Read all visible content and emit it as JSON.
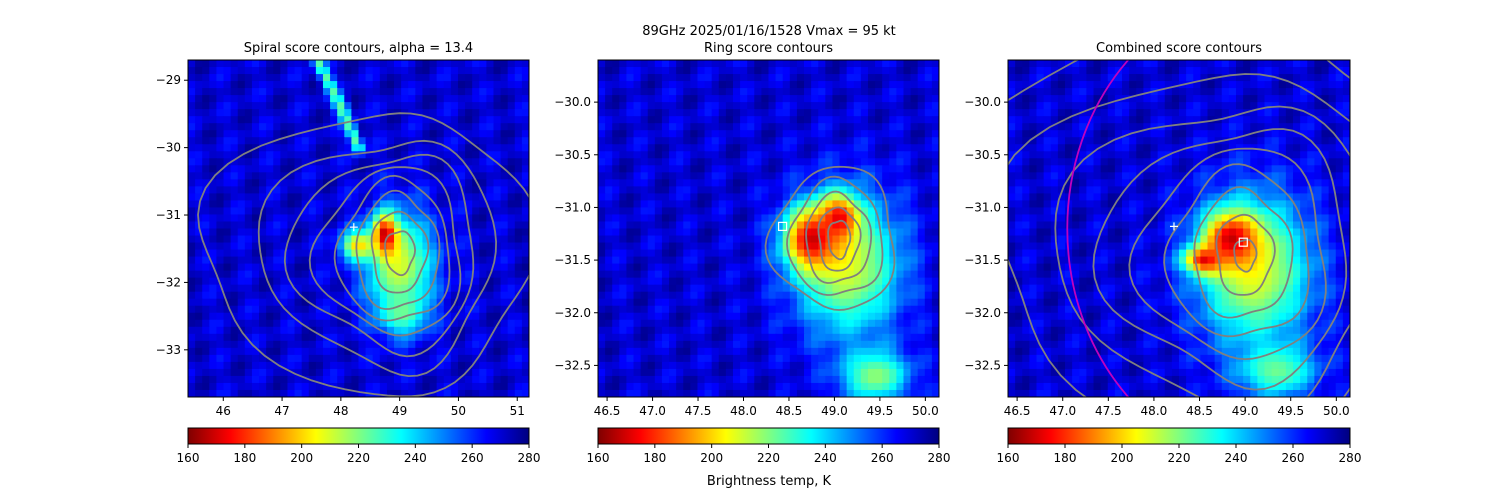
{
  "suptitle": "89GHz  2025/01/16/1528    Vmax = 95 kt",
  "colorbar_label": "Brightness temp, K",
  "colormap": [
    "#7f0000",
    "#ff0000",
    "#ff8000",
    "#ffff00",
    "#80ff80",
    "#00ffff",
    "#0080ff",
    "#0000ff",
    "#00007f"
  ],
  "colors": {
    "contour": "#808080",
    "ring_circle": "#c000c0",
    "marker": "#ffffff",
    "background_field": "#0000c8"
  },
  "icons": {
    "center_marker": "plus-marker",
    "ring_center_marker": "square-marker"
  },
  "chart_data": [
    {
      "type": "heatmap",
      "title": "Spiral score contours, alpha = 13.4",
      "xlim": [
        45.4,
        51.2
      ],
      "ylim": [
        -33.7,
        -28.7
      ],
      "xticks": [
        46,
        47,
        48,
        49,
        50,
        51
      ],
      "xtick_labels": [
        "46",
        "47",
        "48",
        "49",
        "50",
        "51"
      ],
      "yticks": [
        -29,
        -30,
        -31,
        -32,
        -33
      ],
      "ytick_labels": [
        "−29",
        "−30",
        "−31",
        "−32",
        "−33"
      ],
      "colorbar": {
        "range": [
          160,
          280
        ],
        "ticks": [
          160,
          180,
          200,
          220,
          240,
          260,
          280
        ],
        "tick_labels": [
          "160",
          "180",
          "200",
          "220",
          "240",
          "260",
          "280"
        ]
      },
      "center_marker": {
        "x": 48.22,
        "y": -31.18
      },
      "cold_features": [
        {
          "x": 49.0,
          "y": -31.75,
          "rx": 0.7,
          "ry": 0.95,
          "min_k": 210
        },
        {
          "x": 48.75,
          "y": -31.3,
          "rx": 0.25,
          "ry": 0.35,
          "min_k": 165
        },
        {
          "x": 49.05,
          "y": -32.45,
          "rx": 0.45,
          "ry": 0.35,
          "min_k": 222
        },
        {
          "x": 48.3,
          "y": -31.45,
          "rx": 0.35,
          "ry": 0.25,
          "min_k": 200
        }
      ],
      "cold_band": {
        "points": [
          [
            47.6,
            -28.7
          ],
          [
            48.0,
            -29.4
          ],
          [
            48.3,
            -30.0
          ]
        ],
        "width": 0.12,
        "min_k": 225
      },
      "contours": {
        "center": [
          49.0,
          -31.55
        ],
        "levels": [
          {
            "rx": 0.25,
            "ry": 0.32
          },
          {
            "rx": 0.45,
            "ry": 0.6
          },
          {
            "rx": 0.65,
            "ry": 0.85
          },
          {
            "rx": 0.85,
            "ry": 1.05
          },
          {
            "rx": 1.05,
            "ry": 1.25
          },
          {
            "rx": 1.3,
            "ry": 1.45
          },
          {
            "rx": 1.6,
            "ry": 1.7
          },
          {
            "rx": 2.2,
            "ry": 2.1
          }
        ],
        "skew_left": 0.6
      }
    },
    {
      "type": "heatmap",
      "title": "Ring score contours",
      "xlim": [
        46.4,
        50.15
      ],
      "ylim": [
        -32.8,
        -29.6
      ],
      "xticks": [
        46.5,
        47.0,
        47.5,
        48.0,
        48.5,
        49.0,
        49.5,
        50.0
      ],
      "xtick_labels": [
        "46.5",
        "47.0",
        "47.5",
        "48.0",
        "48.5",
        "49.0",
        "49.5",
        "50.0"
      ],
      "yticks": [
        -30.0,
        -30.5,
        -31.0,
        -31.5,
        -32.0,
        -32.5
      ],
      "ytick_labels": [
        "−30.0",
        "−30.5",
        "−31.0",
        "−31.5",
        "−32.0",
        "−32.5"
      ],
      "colorbar": {
        "range": [
          160,
          280
        ],
        "ticks": [
          160,
          180,
          200,
          220,
          240,
          260,
          280
        ],
        "tick_labels": [
          "160",
          "180",
          "200",
          "220",
          "240",
          "260",
          "280"
        ]
      },
      "ring_center_marker": {
        "x": 48.43,
        "y": -31.18
      },
      "cold_features": [
        {
          "x": 49.15,
          "y": -31.55,
          "rx": 0.7,
          "ry": 0.8,
          "min_k": 210
        },
        {
          "x": 48.75,
          "y": -31.3,
          "rx": 0.35,
          "ry": 0.35,
          "min_k": 168
        },
        {
          "x": 49.05,
          "y": -31.1,
          "rx": 0.25,
          "ry": 0.25,
          "min_k": 172
        },
        {
          "x": 49.45,
          "y": -32.6,
          "rx": 0.45,
          "ry": 0.3,
          "min_k": 218
        }
      ],
      "contours": {
        "center": [
          49.05,
          -31.3
        ],
        "levels": [
          {
            "rx": 0.12,
            "ry": 0.18
          },
          {
            "rx": 0.22,
            "ry": 0.3
          },
          {
            "rx": 0.34,
            "ry": 0.42
          },
          {
            "rx": 0.48,
            "ry": 0.55
          },
          {
            "rx": 0.62,
            "ry": 0.68
          }
        ],
        "skew_left": 0.2
      }
    },
    {
      "type": "heatmap",
      "title": "Combined score contours",
      "xlim": [
        46.4,
        50.15
      ],
      "ylim": [
        -32.8,
        -29.6
      ],
      "xticks": [
        46.5,
        47.0,
        47.5,
        48.0,
        48.5,
        49.0,
        49.5,
        50.0
      ],
      "xtick_labels": [
        "46.5",
        "47.0",
        "47.5",
        "48.0",
        "48.5",
        "49.0",
        "49.5",
        "50.0"
      ],
      "yticks": [
        -30.0,
        -30.5,
        -31.0,
        -31.5,
        -32.0,
        -32.5
      ],
      "ytick_labels": [
        "−30.0",
        "−30.5",
        "−31.0",
        "−31.5",
        "−32.0",
        "−32.5"
      ],
      "colorbar": {
        "range": [
          160,
          280
        ],
        "ticks": [
          160,
          180,
          200,
          220,
          240,
          260,
          280
        ],
        "tick_labels": [
          "160",
          "180",
          "200",
          "220",
          "240",
          "260",
          "280"
        ]
      },
      "center_marker": {
        "x": 48.22,
        "y": -31.18
      },
      "ring_center_marker": {
        "x": 48.98,
        "y": -31.33
      },
      "ring_circle": {
        "x": 49.3,
        "y": -31.2,
        "r": 2.25
      },
      "cold_features": [
        {
          "x": 49.1,
          "y": -31.6,
          "rx": 0.75,
          "ry": 0.85,
          "min_k": 208
        },
        {
          "x": 48.85,
          "y": -31.3,
          "rx": 0.35,
          "ry": 0.3,
          "min_k": 168
        },
        {
          "x": 48.55,
          "y": -31.5,
          "rx": 0.25,
          "ry": 0.15,
          "min_k": 172
        },
        {
          "x": 49.35,
          "y": -32.55,
          "rx": 0.5,
          "ry": 0.3,
          "min_k": 222
        }
      ],
      "contours": {
        "center": [
          49.0,
          -31.45
        ],
        "levels": [
          {
            "rx": 0.12,
            "ry": 0.15
          },
          {
            "rx": 0.3,
            "ry": 0.38
          },
          {
            "rx": 0.5,
            "ry": 0.6
          },
          {
            "rx": 0.7,
            "ry": 0.8
          },
          {
            "rx": 0.9,
            "ry": 1.0
          },
          {
            "rx": 1.15,
            "ry": 1.2
          },
          {
            "rx": 1.45,
            "ry": 1.45
          },
          {
            "rx": 1.85,
            "ry": 1.75
          },
          {
            "rx": 2.4,
            "ry": 2.2
          }
        ],
        "skew_left": 0.6
      }
    }
  ]
}
